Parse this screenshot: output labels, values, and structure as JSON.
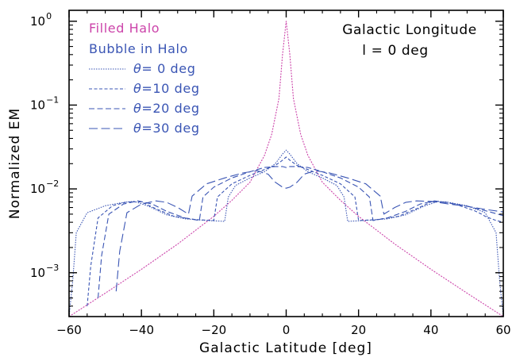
{
  "chart_data": {
    "type": "line",
    "xlabel": "Galactic Latitude [deg]",
    "ylabel": "Normalized EM",
    "xlim": [
      -60,
      60
    ],
    "ylim": [
      0.0003,
      1.35
    ],
    "yscale": "log",
    "xticks": [
      -60,
      -40,
      -20,
      0,
      20,
      40,
      60
    ],
    "xtick_labels": [
      "−60",
      "−40",
      "−20",
      "0",
      "20",
      "40",
      "60"
    ],
    "yticks": [
      {
        "value": 1,
        "base": "10",
        "exp": "0"
      },
      {
        "value": 0.1,
        "base": "10",
        "exp": "−1"
      },
      {
        "value": 0.01,
        "base": "10",
        "exp": "−2"
      },
      {
        "value": 0.001,
        "base": "10",
        "exp": "−3"
      }
    ],
    "grid": false,
    "legend_placement": "top-left",
    "legend_headers": [
      {
        "text": "Filled Halo",
        "color": "#cc44aa"
      },
      {
        "text": "Bubble in Halo",
        "color": "#3a55b4"
      }
    ],
    "annotation": {
      "line1": "Galactic Longitude",
      "line2": "l = 0 deg"
    },
    "series": [
      {
        "name": "Filled Halo",
        "color": "#cc44aa",
        "dash": "2,1.5",
        "x": [
          -60,
          -50,
          -40,
          -30,
          -20,
          -15,
          -10,
          -6,
          -4,
          -2,
          -1,
          0,
          1,
          2,
          4,
          6,
          10,
          15,
          20,
          30,
          40,
          50,
          60
        ],
        "y": [
          0.0003,
          0.00057,
          0.0011,
          0.0022,
          0.0047,
          0.0073,
          0.012,
          0.025,
          0.045,
          0.12,
          0.4,
          1.0,
          0.4,
          0.12,
          0.045,
          0.025,
          0.012,
          0.0073,
          0.0047,
          0.0022,
          0.0011,
          0.00057,
          0.0003
        ]
      },
      {
        "name": "θ= 0 deg",
        "label_prefix": "θ",
        "label_rest": "= 0 deg",
        "color": "#3a55b4",
        "dash": "1.5,1.5",
        "x": [
          -60,
          -59,
          -58,
          -55,
          -50,
          -45,
          -42,
          -38,
          -33,
          -28,
          -22,
          -17,
          -16,
          -14,
          -10,
          -6,
          -3,
          -1,
          0,
          1,
          3,
          6,
          10,
          14,
          16,
          17,
          22,
          28,
          33,
          38,
          42,
          45,
          50,
          55,
          58,
          59,
          60
        ],
        "y": [
          0.0003,
          0.0008,
          0.003,
          0.0052,
          0.0063,
          0.0069,
          0.0071,
          0.0062,
          0.0049,
          0.0044,
          0.0042,
          0.0041,
          0.008,
          0.011,
          0.0135,
          0.016,
          0.02,
          0.026,
          0.029,
          0.026,
          0.02,
          0.016,
          0.0135,
          0.011,
          0.008,
          0.0041,
          0.0042,
          0.0044,
          0.0049,
          0.0062,
          0.0071,
          0.0069,
          0.0063,
          0.0052,
          0.003,
          0.0008,
          0.0003
        ]
      },
      {
        "name": "θ=10 deg",
        "label_prefix": "θ",
        "label_rest": "=10 deg",
        "color": "#3a55b4",
        "dash": "4,2.5",
        "x": [
          -55,
          -54,
          -52,
          -48,
          -44,
          -40,
          -36,
          -31,
          -25,
          -20,
          -19,
          -15,
          -10,
          -6,
          -3,
          -1,
          0,
          1,
          3,
          6,
          10,
          15,
          19,
          20,
          25,
          31,
          36,
          40,
          44,
          48,
          52,
          54,
          55,
          58,
          60
        ],
        "y": [
          0.0004,
          0.0012,
          0.0045,
          0.0063,
          0.007,
          0.007,
          0.0058,
          0.0047,
          0.0043,
          0.0042,
          0.008,
          0.0115,
          0.0145,
          0.017,
          0.019,
          0.022,
          0.024,
          0.022,
          0.019,
          0.017,
          0.0145,
          0.0115,
          0.008,
          0.0042,
          0.0043,
          0.0047,
          0.0058,
          0.007,
          0.007,
          0.0063,
          0.0055,
          0.005,
          0.0047,
          0.0042,
          0.004
        ]
      },
      {
        "name": "θ=20 deg",
        "label_prefix": "θ",
        "label_rest": "=20 deg",
        "color": "#3a55b4",
        "dash": "7,3.5",
        "x": [
          -52,
          -51,
          -49,
          -45,
          -41,
          -37,
          -33,
          -28,
          -24,
          -23,
          -20,
          -15,
          -10,
          -6,
          -3,
          -1,
          0,
          1,
          3,
          6,
          10,
          15,
          20,
          23,
          24,
          28,
          33,
          37,
          41,
          45,
          50,
          55,
          60
        ],
        "y": [
          0.0005,
          0.0016,
          0.005,
          0.0066,
          0.0072,
          0.0066,
          0.0054,
          0.0045,
          0.0042,
          0.008,
          0.0105,
          0.0135,
          0.016,
          0.018,
          0.0185,
          0.0185,
          0.018,
          0.0185,
          0.0185,
          0.018,
          0.016,
          0.0135,
          0.0105,
          0.008,
          0.0042,
          0.0045,
          0.0054,
          0.0066,
          0.0072,
          0.0068,
          0.0062,
          0.0055,
          0.0048
        ]
      },
      {
        "name": "θ=30 deg",
        "label_prefix": "θ",
        "label_rest": "=30 deg",
        "color": "#3a55b4",
        "dash": "11,4.5",
        "x": [
          -47,
          -46,
          -44,
          -40,
          -36,
          -33,
          -30,
          -27,
          -26,
          -22,
          -17,
          -12,
          -8,
          -5,
          -3,
          -1,
          0,
          1,
          3,
          5,
          8,
          12,
          17,
          22,
          26,
          27,
          30,
          33,
          36,
          40,
          45,
          50,
          55,
          60
        ],
        "y": [
          0.0006,
          0.0018,
          0.0052,
          0.0066,
          0.0072,
          0.0069,
          0.006,
          0.005,
          0.0082,
          0.0115,
          0.0135,
          0.0155,
          0.0165,
          0.015,
          0.012,
          0.0105,
          0.0102,
          0.0105,
          0.012,
          0.015,
          0.0165,
          0.0155,
          0.0135,
          0.0115,
          0.0082,
          0.005,
          0.006,
          0.0069,
          0.0072,
          0.0071,
          0.0066,
          0.0062,
          0.0057,
          0.0053
        ]
      }
    ]
  }
}
